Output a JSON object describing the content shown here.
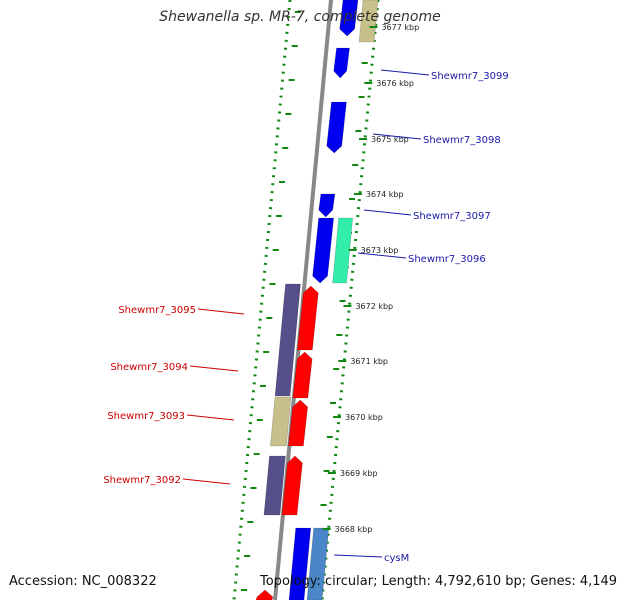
{
  "title": "Shewanella sp. MR-7, complete genome",
  "accession": "Accession: NC_008322",
  "topology": "Topology: circular; Length: 4,792,610 bp; Genes: 4,149",
  "colors": {
    "forward_cds": "#0000ee",
    "reverse_cds": "#ff0000",
    "forward_other": "#c8c08a",
    "reverse_other": "#55508a",
    "trna_like": "#33eeaa",
    "steel": "#4a86c8",
    "forward_label": "#1a1aa8",
    "reverse_label": "#cc0000",
    "backbone": "#888888",
    "guide_dots": "#118811"
  },
  "ticks": [
    {
      "label": "3677 kbp",
      "kbp": 3677
    },
    {
      "label": "3676 kbp",
      "kbp": 3676
    },
    {
      "label": "3675 kbp",
      "kbp": 3675
    },
    {
      "label": "3674 kbp",
      "kbp": 3674
    },
    {
      "label": "3673 kbp",
      "kbp": 3673
    },
    {
      "label": "3672 kbp",
      "kbp": 3672
    },
    {
      "label": "3671 kbp",
      "kbp": 3671
    },
    {
      "label": "3670 kbp",
      "kbp": 3670
    },
    {
      "label": "3669 kbp",
      "kbp": 3669
    },
    {
      "label": "3668 kbp",
      "kbp": 3668
    }
  ],
  "forward_labels": [
    "Shewmr7_3099",
    "Shewmr7_3098",
    "Shewmr7_3097",
    "Shewmr7_3096",
    "cysM"
  ],
  "reverse_labels": [
    "Shewmr7_3095",
    "Shewmr7_3094",
    "Shewmr7_3093",
    "Shewmr7_3092"
  ]
}
